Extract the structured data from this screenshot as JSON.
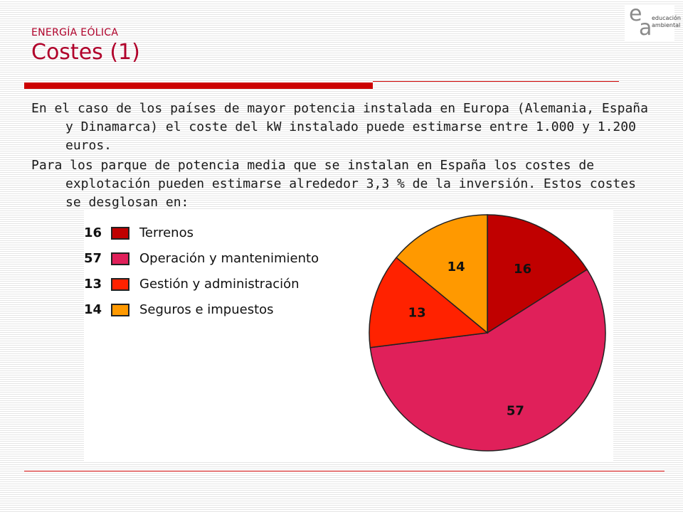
{
  "header": {
    "section": "ENERGÍA EÓLICA",
    "title": "Costes (1)"
  },
  "logo": {
    "letter_e": "e",
    "letter_a": "a",
    "line1": "educación",
    "line2": "ambiental"
  },
  "paragraphs": [
    "En el caso de los países de mayor potencia instalada en Europa (Alemania, España y Dinamarca) el coste del kW instalado puede estimarse entre 1.000 y 1.200 euros.",
    "Para los parque de potencia media que se instalan en España los costes de explotación pueden estimarse alrededor 3,3 % de la inversión. Estos costes se desglosan en:"
  ],
  "chart_data": {
    "type": "pie",
    "categories": [
      "Terrenos",
      "Operación y mantenimiento",
      "Gestión y administración",
      "Seguros e impuestos"
    ],
    "values": [
      16,
      57,
      13,
      14
    ],
    "colors": [
      "#c00000",
      "#e0205a",
      "#ff2200",
      "#ff9900"
    ],
    "legend_position": "left"
  }
}
